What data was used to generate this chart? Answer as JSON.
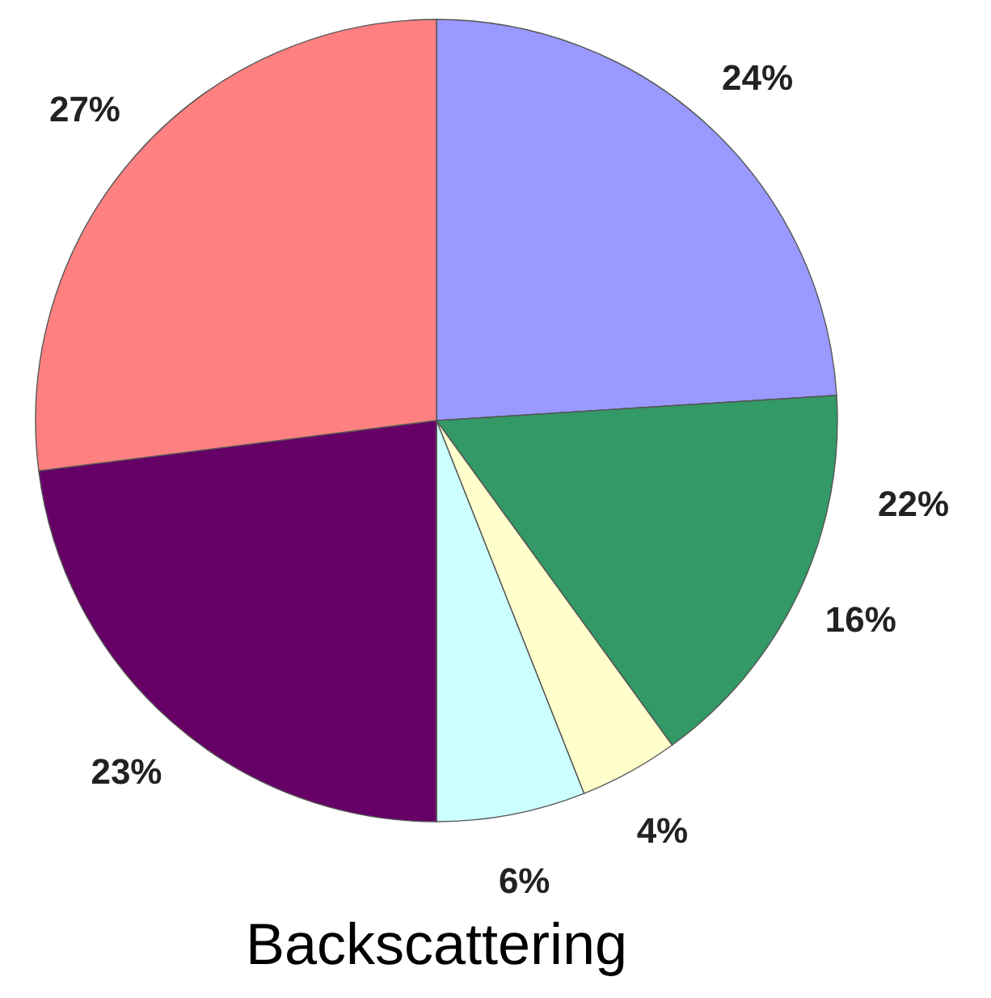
{
  "chart_data": {
    "type": "pie",
    "title": "Backscattering",
    "categories": [
      null,
      null,
      null,
      null,
      null,
      null
    ],
    "values": [
      24,
      16,
      4,
      6,
      23,
      27
    ],
    "colors": [
      "#9999ff",
      "#339966",
      "#ffffcc",
      "#ccffff",
      "#660066",
      "#ff8080"
    ],
    "value_labels": [
      "24%",
      "16%",
      "4%",
      "6%",
      "23%",
      "27%"
    ],
    "annotations": [
      "22%"
    ]
  }
}
